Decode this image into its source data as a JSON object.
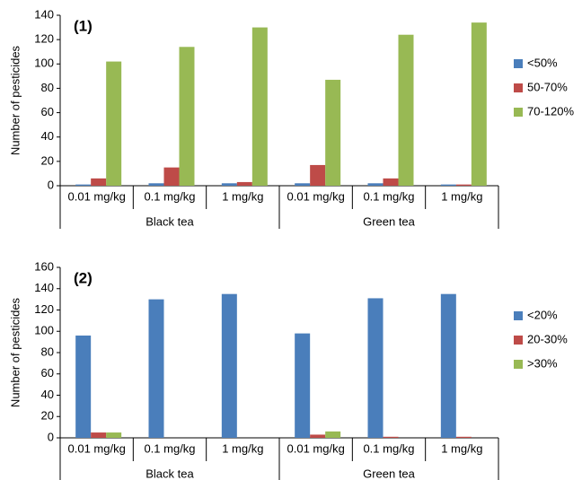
{
  "chart_data": [
    {
      "type": "bar",
      "annotation": "(1)",
      "y_label": "Number of pesticides",
      "categories": [
        "0.01 mg/kg",
        "0.1 mg/kg",
        "1 mg/kg",
        "0.01 mg/kg",
        "0.1 mg/kg",
        "1 mg/kg"
      ],
      "groups": [
        "Black tea",
        "Green tea"
      ],
      "series": [
        {
          "name": "<50%",
          "color": "#4a7ebb",
          "values": [
            1,
            2,
            2,
            2,
            2,
            1
          ]
        },
        {
          "name": "50-70%",
          "color": "#be4b48",
          "values": [
            6,
            15,
            3,
            17,
            6,
            1
          ]
        },
        {
          "name": "70-120%",
          "color": "#98b954",
          "values": [
            102,
            114,
            130,
            87,
            124,
            134
          ]
        }
      ],
      "ylim": [
        0,
        140
      ],
      "yticks": [
        0,
        20,
        40,
        60,
        80,
        100,
        120,
        140
      ],
      "legend": "right"
    },
    {
      "type": "bar",
      "annotation": "(2)",
      "y_label": "Number of pesticides",
      "categories": [
        "0.01 mg/kg",
        "0.1 mg/kg",
        "1 mg/kg",
        "0.01 mg/kg",
        "0.1 mg/kg",
        "1 mg/kg"
      ],
      "groups": [
        "Black tea",
        "Green tea"
      ],
      "series": [
        {
          "name": "<20%",
          "color": "#4a7ebb",
          "values": [
            96,
            130,
            135,
            98,
            131,
            135
          ]
        },
        {
          "name": "20-30%",
          "color": "#be4b48",
          "values": [
            5,
            0,
            0,
            3,
            1,
            1
          ]
        },
        {
          "name": ">30%",
          "color": "#98b954",
          "values": [
            5,
            0,
            0,
            6,
            0,
            0
          ]
        }
      ],
      "ylim": [
        0,
        160
      ],
      "yticks": [
        0,
        20,
        40,
        60,
        80,
        100,
        120,
        140,
        160
      ],
      "legend": "right"
    }
  ]
}
